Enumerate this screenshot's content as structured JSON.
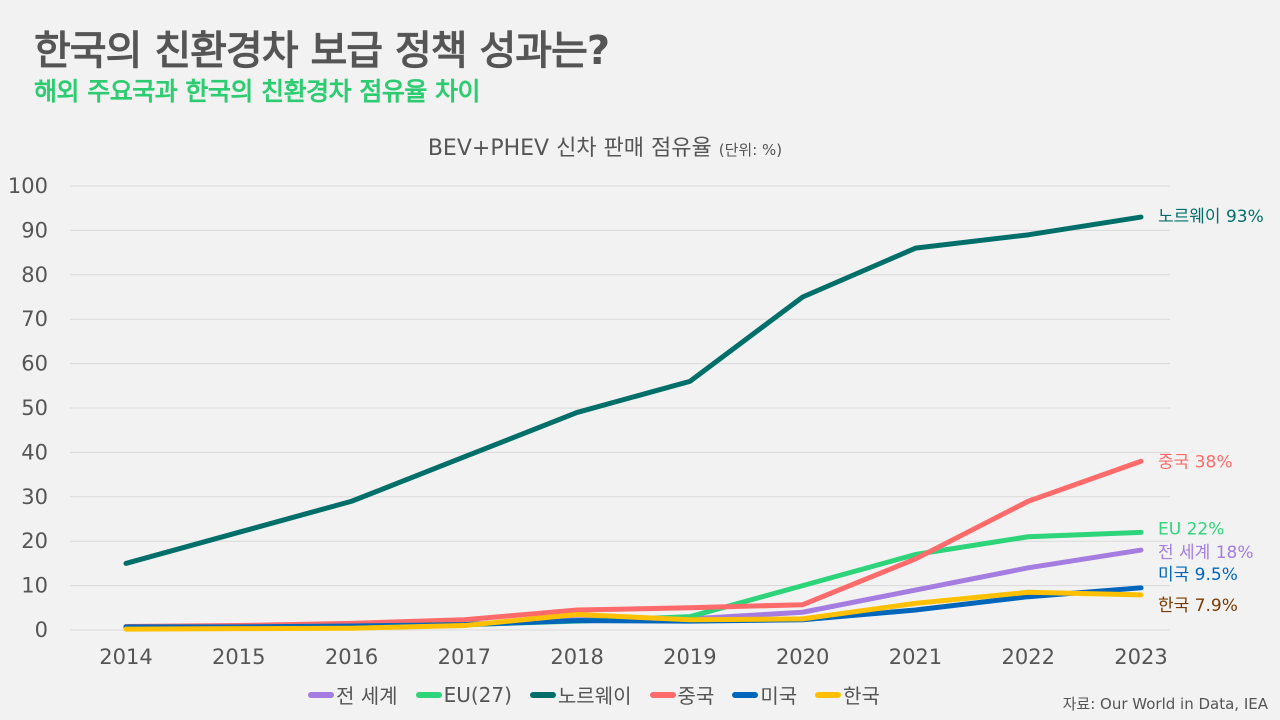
{
  "header": {
    "title": "한국의 친환경차 보급 정책 성과는?",
    "subtitle": "해외 주요국과 한국의 친환경차 점유율 차이"
  },
  "source": "자료: Our World in Data, IEA",
  "chart_data": {
    "type": "line",
    "title": "BEV+PHEV 신차 판매 점유율",
    "unit_label": "(단위: %)",
    "xlabel": "",
    "ylabel": "",
    "x": [
      "2014",
      "2015",
      "2016",
      "2017",
      "2018",
      "2019",
      "2020",
      "2021",
      "2022",
      "2023"
    ],
    "ylim": [
      0,
      100
    ],
    "yticks": [
      0,
      10,
      20,
      30,
      40,
      50,
      60,
      70,
      80,
      90,
      100
    ],
    "grid": true,
    "legend_position": "bottom",
    "series": [
      {
        "name": "전 세계",
        "color": "#a57de0",
        "label_color": "#a57de0",
        "end_label": "전 세계 18%",
        "values": [
          0.5,
          0.6,
          0.9,
          1.3,
          2.3,
          2.5,
          4.0,
          9.0,
          14.0,
          18.0
        ]
      },
      {
        "name": "EU(27)",
        "color": "#2ed47a",
        "label_color": "#2ed47a",
        "end_label": "EU 22%",
        "values": [
          0.5,
          0.8,
          0.8,
          1.2,
          2.0,
          3.0,
          10.0,
          17.0,
          21.0,
          22.0
        ]
      },
      {
        "name": "노르웨이",
        "color": "#006f6a",
        "label_color": "#006f6a",
        "end_label": "노르웨이 93%",
        "values": [
          15,
          22,
          29,
          39,
          49,
          56,
          75,
          86,
          89,
          93
        ]
      },
      {
        "name": "중국",
        "color": "#ff6b6b",
        "label_color": "#ff6b6b",
        "end_label": "중국 38%",
        "values": [
          0.8,
          1.0,
          1.5,
          2.3,
          4.5,
          5.0,
          5.7,
          16.0,
          29.0,
          38.0
        ]
      },
      {
        "name": "미국",
        "color": "#0066bb",
        "label_color": "#0066bb",
        "end_label": "미국 9.5%",
        "values": [
          0.7,
          0.7,
          0.9,
          1.2,
          2.1,
          2.0,
          2.3,
          4.5,
          7.5,
          9.5
        ]
      },
      {
        "name": "한국",
        "color": "#ffc000",
        "label_color": "#7a3a00",
        "end_label": "한국 7.9%",
        "values": [
          0.2,
          0.3,
          0.4,
          1.0,
          3.5,
          2.3,
          2.5,
          6.0,
          8.5,
          7.9
        ]
      }
    ]
  }
}
